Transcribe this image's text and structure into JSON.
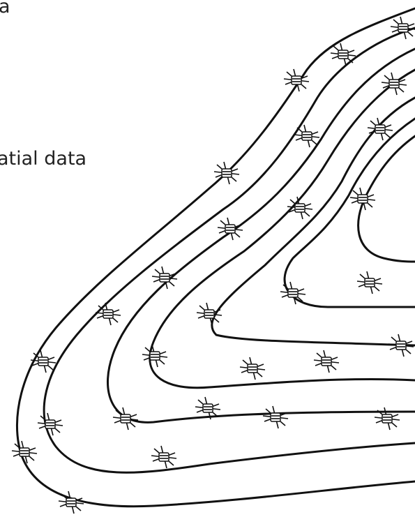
{
  "texts": [
    "a",
    "atial data"
  ]
}
